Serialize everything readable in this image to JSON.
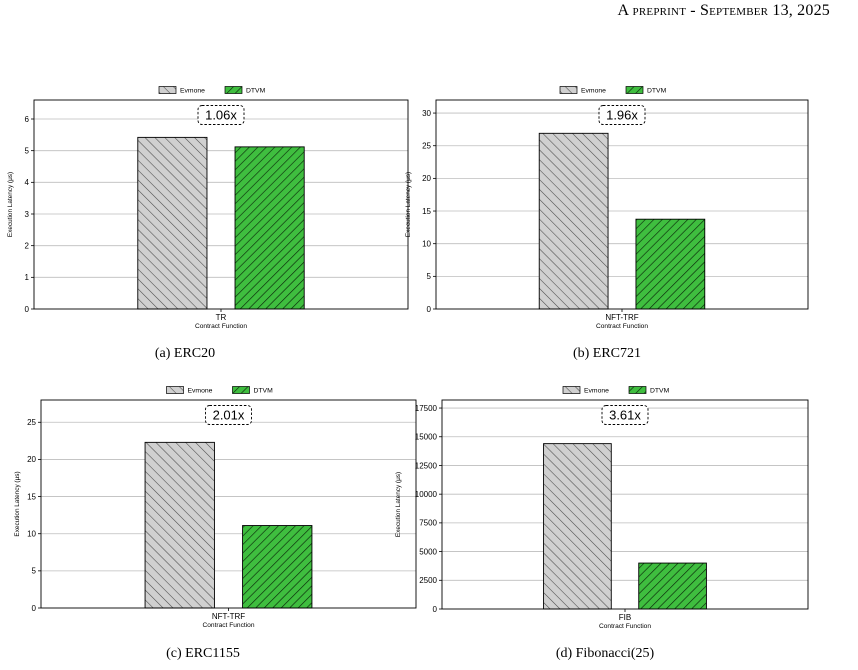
{
  "header": {
    "text": "A preprint - September 13, 2025"
  },
  "colors": {
    "evmone_fill": "#d0d0d0",
    "dtvm_fill": "#3fbe3f",
    "grid": "#bdbdbd",
    "axis": "#000000"
  },
  "panels": [
    {
      "caption": "(a) ERC20",
      "chart_data": {
        "type": "bar",
        "categories": [
          "TR"
        ],
        "xlabel": "Contract Function",
        "ylabel": "Execution Latency (μs)",
        "ylim": [
          0,
          6.6
        ],
        "yticks": [
          0,
          1,
          2,
          3,
          4,
          5,
          6
        ],
        "ytick_labels": [
          "0",
          "1",
          "2",
          "3",
          "4",
          "5",
          "6"
        ],
        "series": [
          {
            "name": "Evmone",
            "values": [
              5.42
            ]
          },
          {
            "name": "DTVM",
            "values": [
              5.12
            ]
          }
        ],
        "annotation": "1.06x",
        "legend": "top-center",
        "grid": true
      }
    },
    {
      "caption": "(b) ERC721",
      "chart_data": {
        "type": "bar",
        "categories": [
          "NFT-TRF"
        ],
        "xlabel": "Contract Function",
        "ylabel": "Execution Latency (μs)",
        "ylim": [
          0,
          32
        ],
        "yticks": [
          0,
          5,
          10,
          15,
          20,
          25,
          30
        ],
        "ytick_labels": [
          "0",
          "5",
          "10",
          "15",
          "20",
          "25",
          "30"
        ],
        "series": [
          {
            "name": "Evmone",
            "values": [
              26.9
            ]
          },
          {
            "name": "DTVM",
            "values": [
              13.75
            ]
          }
        ],
        "annotation": "1.96x",
        "legend": "top-center",
        "grid": true
      }
    },
    {
      "caption": "(c) ERC1155",
      "chart_data": {
        "type": "bar",
        "categories": [
          "NFT-TRF"
        ],
        "xlabel": "Contract Function",
        "ylabel": "Execution Latency (μs)",
        "ylim": [
          0,
          28
        ],
        "yticks": [
          0,
          5,
          10,
          15,
          20,
          25
        ],
        "ytick_labels": [
          "0",
          "5",
          "10",
          "15",
          "20",
          "25"
        ],
        "series": [
          {
            "name": "Evmone",
            "values": [
              22.3
            ]
          },
          {
            "name": "DTVM",
            "values": [
              11.1
            ]
          }
        ],
        "annotation": "2.01x",
        "legend": "top-center",
        "grid": true
      }
    },
    {
      "caption": "(d) Fibonacci(25)",
      "chart_data": {
        "type": "bar",
        "categories": [
          "FIB"
        ],
        "xlabel": "Contract Function",
        "ylabel": "Execution Latency (μs)",
        "ylim": [
          0,
          18200
        ],
        "yticks": [
          0,
          2500,
          5000,
          7500,
          10000,
          12500,
          15000,
          17500
        ],
        "ytick_labels": [
          "0",
          "2500",
          "5000",
          "7500",
          "10000",
          "12500",
          "15000",
          "17500"
        ],
        "series": [
          {
            "name": "Evmone",
            "values": [
              14400
            ]
          },
          {
            "name": "DTVM",
            "values": [
              4000
            ]
          }
        ],
        "annotation": "3.61x",
        "legend": "top-center",
        "grid": true
      }
    }
  ]
}
